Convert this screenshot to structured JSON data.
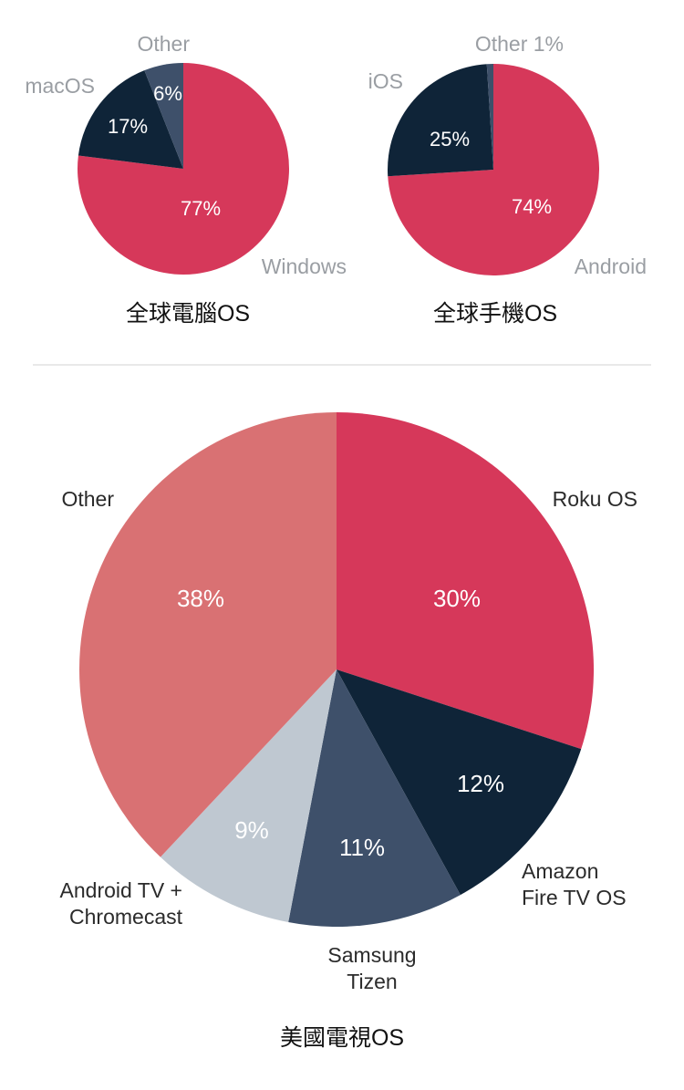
{
  "colors": {
    "red": "#d6385a",
    "navy": "#0f2438",
    "slate": "#3e506a",
    "lightgray": "#bfc8d1",
    "salmon": "#d97173",
    "divider": "#e2e2e2"
  },
  "chart_data": [
    {
      "type": "pie",
      "title": "全球電腦OS",
      "slices": [
        {
          "label": "Windows",
          "value": 77,
          "value_label": "77%",
          "color": "#d6385a"
        },
        {
          "label": "macOS",
          "value": 17,
          "value_label": "17%",
          "color": "#0f2438"
        },
        {
          "label": "Other",
          "value": 6,
          "value_label": "6%",
          "color": "#3e506a"
        }
      ]
    },
    {
      "type": "pie",
      "title": "全球手機OS",
      "slices": [
        {
          "label": "Android",
          "value": 74,
          "value_label": "74%",
          "color": "#d6385a"
        },
        {
          "label": "iOS",
          "value": 25,
          "value_label": "25%",
          "color": "#0f2438"
        },
        {
          "label": "Other 1%",
          "value": 1,
          "value_label": "",
          "color": "#3e506a"
        }
      ]
    },
    {
      "type": "pie",
      "title": "美國電視OS",
      "slices": [
        {
          "label": "Roku OS",
          "value": 30,
          "value_label": "30%",
          "color": "#d6385a"
        },
        {
          "label": "Amazon\nFire TV OS",
          "value": 12,
          "value_label": "12%",
          "color": "#0f2438"
        },
        {
          "label": "Samsung\nTizen",
          "value": 11,
          "value_label": "11%",
          "color": "#3e506a"
        },
        {
          "label": "Android TV +\nChromecast",
          "value": 9,
          "value_label": "9%",
          "color": "#bfc8d1"
        },
        {
          "label": "Other",
          "value": 38,
          "value_label": "38%",
          "color": "#d97173"
        }
      ]
    }
  ]
}
